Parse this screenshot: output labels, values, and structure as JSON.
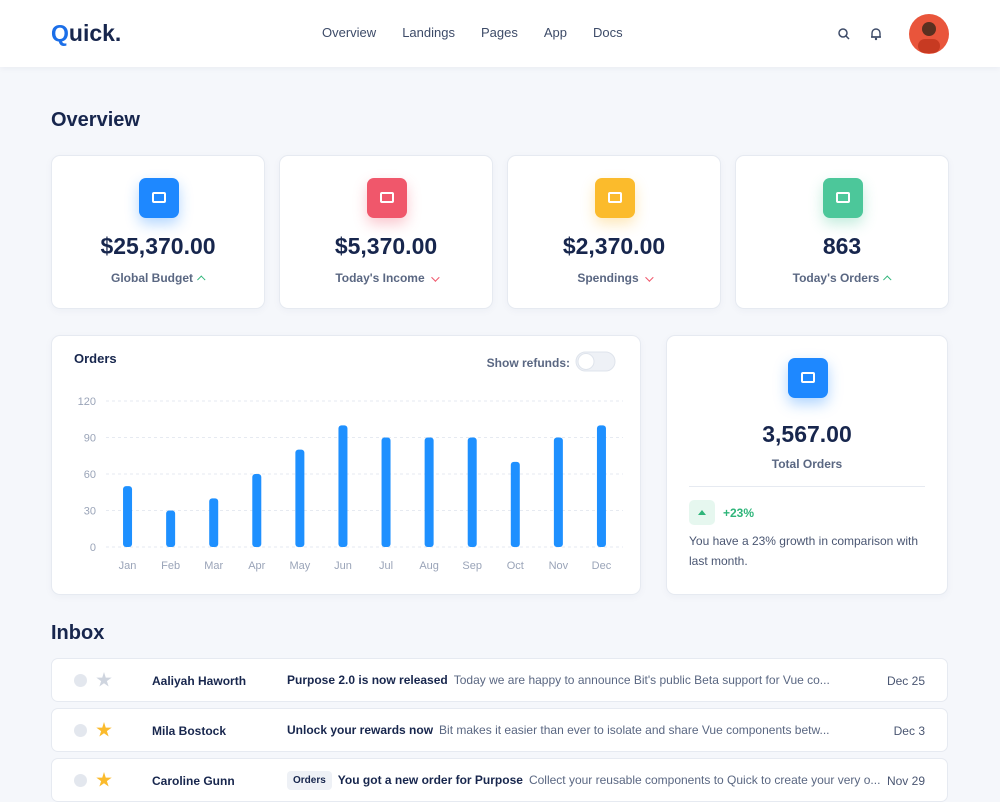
{
  "header": {
    "logo": "Quick.",
    "nav": [
      "Overview",
      "Landings",
      "Pages",
      "App",
      "Docs"
    ]
  },
  "overview": {
    "title": "Overview",
    "cards": [
      {
        "value": "$25,370.00",
        "label": "Global Budget"
      },
      {
        "value": "$5,370.00",
        "label": "Today's Income"
      },
      {
        "value": "$2,370.00",
        "label": "Spendings"
      },
      {
        "value": "863",
        "label": "Today's Orders"
      }
    ]
  },
  "chart_data": {
    "type": "bar",
    "title": "Orders",
    "toggle_label": "Show refunds:",
    "categories": [
      "Jan",
      "Feb",
      "Mar",
      "Apr",
      "May",
      "Jun",
      "Jul",
      "Aug",
      "Sep",
      "Oct",
      "Nov",
      "Dec"
    ],
    "values": [
      50,
      30,
      40,
      60,
      80,
      100,
      90,
      90,
      90,
      70,
      90,
      100
    ],
    "color": "#1e90ff",
    "ylim": [
      0,
      120
    ],
    "yticks": [
      0,
      30,
      60,
      90,
      120
    ],
    "grid": true
  },
  "total_orders": {
    "value": "3,567.00",
    "label": "Total Orders",
    "change": "+23%",
    "note": "You have a 23% growth in comparison with last month."
  },
  "inbox": {
    "title": "Inbox",
    "messages": [
      {
        "sender": "Aaliyah Haworth",
        "subject": "Purpose 2.0 is now released",
        "preview": "Today we are happy to announce Bit's public Beta support for Vue co...",
        "date": "Dec 25"
      },
      {
        "sender": "Mila Bostock",
        "subject": "Unlock your rewards now",
        "preview": "Bit makes it easier than ever to isolate and share Vue components betw...",
        "date": "Dec 3"
      },
      {
        "sender": "Caroline Gunn",
        "tag": "Orders",
        "subject": "You got a new order for Purpose",
        "preview": "Collect your reusable components to Quick to create your very o...",
        "date": "Nov 29"
      }
    ]
  }
}
